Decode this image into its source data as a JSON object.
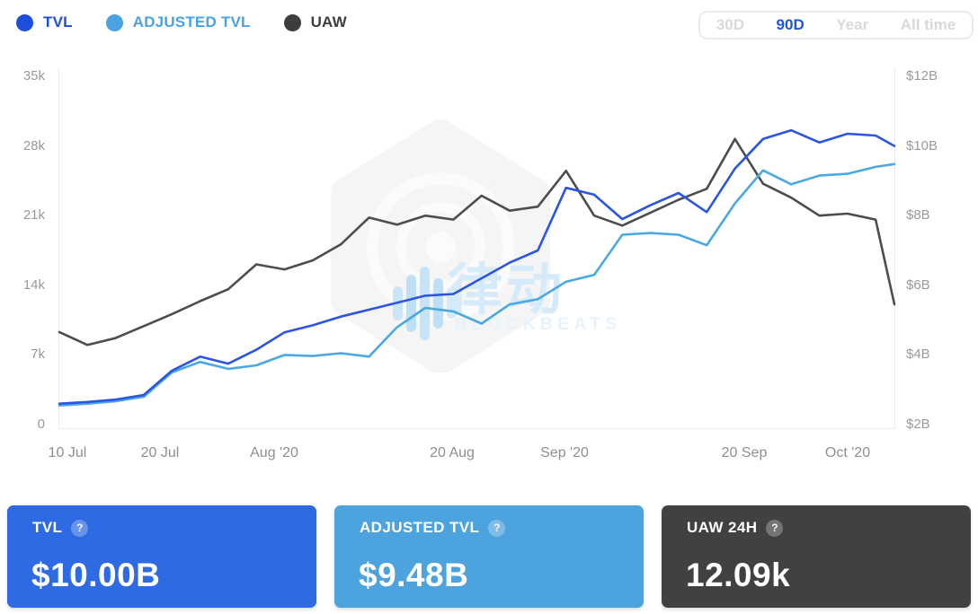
{
  "legend": {
    "items": [
      {
        "label": "TVL",
        "color": "#1d4fdd"
      },
      {
        "label": "ADJUSTED TVL",
        "color": "#4aa3e0"
      },
      {
        "label": "UAW",
        "color": "#3d3d3d"
      }
    ]
  },
  "range_selector": {
    "active_color": "#1d54e8",
    "options": [
      {
        "label": "30D",
        "active": false
      },
      {
        "label": "90D",
        "active": true
      },
      {
        "label": "Year",
        "active": false
      },
      {
        "label": "All time",
        "active": false
      }
    ]
  },
  "chart_data": {
    "type": "line",
    "grid": false,
    "legend_position": "top-left",
    "x": [
      "Jul 9",
      "Jul 12",
      "Jul 15",
      "Jul 18",
      "Jul 21",
      "Jul 24",
      "Jul 27",
      "Jul 30",
      "Aug 2",
      "Aug 5",
      "Aug 8",
      "Aug 11",
      "Aug 14",
      "Aug 17",
      "Aug 20",
      "Aug 23",
      "Aug 26",
      "Aug 29",
      "Sep 1",
      "Sep 4",
      "Sep 7",
      "Sep 10",
      "Sep 13",
      "Sep 16",
      "Sep 19",
      "Sep 22",
      "Sep 25",
      "Sep 28",
      "Oct 1",
      "Oct 4",
      "Oct 6"
    ],
    "days": [
      0,
      3,
      6,
      9,
      12,
      15,
      18,
      21,
      24,
      27,
      30,
      33,
      36,
      39,
      42,
      45,
      48,
      51,
      54,
      57,
      60,
      63,
      66,
      69,
      72,
      75,
      78,
      81,
      84,
      87,
      89
    ],
    "x_ticks": [
      {
        "label": "10 Jul",
        "day": 1
      },
      {
        "label": "20 Jul",
        "day": 11
      },
      {
        "label": "Aug '20",
        "day": 23
      },
      {
        "label": "20 Aug",
        "day": 42
      },
      {
        "label": "Sep '20",
        "day": 54
      },
      {
        "label": "20 Sep",
        "day": 73
      },
      {
        "label": "Oct '20",
        "day": 84
      }
    ],
    "left_axis": {
      "unit": "k UAW",
      "range": [
        0,
        35
      ],
      "ticks": [
        "35k",
        "28k",
        "21k",
        "14k",
        "7k",
        "0"
      ]
    },
    "right_axis": {
      "unit": "$B",
      "range": [
        2,
        12
      ],
      "ticks": [
        "$12B",
        "$10B",
        "$8B",
        "$6B",
        "$4B",
        "$2B"
      ]
    },
    "series": [
      {
        "name": "TVL",
        "axis": "right",
        "unit": "$B",
        "color": "#2b55e2",
        "values": [
          2.6,
          2.65,
          2.72,
          2.85,
          3.55,
          3.95,
          3.75,
          4.15,
          4.65,
          4.85,
          5.1,
          5.3,
          5.5,
          5.7,
          5.75,
          6.2,
          6.65,
          7.0,
          8.8,
          8.6,
          7.9,
          8.3,
          8.65,
          8.1,
          9.35,
          10.2,
          10.45,
          10.1,
          10.35,
          10.3,
          10.0
        ]
      },
      {
        "name": "ADJUSTED TVL",
        "axis": "right",
        "unit": "$B",
        "color": "#4aa9e2",
        "values": [
          2.55,
          2.6,
          2.67,
          2.8,
          3.5,
          3.8,
          3.6,
          3.7,
          4.0,
          3.97,
          4.05,
          3.95,
          4.8,
          5.35,
          5.25,
          4.9,
          5.45,
          5.6,
          6.1,
          6.3,
          7.45,
          7.5,
          7.45,
          7.15,
          8.35,
          9.3,
          8.9,
          9.15,
          9.2,
          9.4,
          9.48
        ]
      },
      {
        "name": "UAW",
        "axis": "left",
        "unit": "k users",
        "color": "#4d4d4d",
        "values": [
          9.3,
          8.0,
          8.7,
          9.9,
          11.1,
          12.4,
          13.6,
          16.1,
          15.6,
          16.5,
          18.1,
          20.8,
          20.1,
          21.0,
          20.6,
          23.0,
          21.5,
          21.9,
          25.5,
          21.0,
          20.0,
          21.3,
          22.6,
          23.7,
          28.7,
          24.2,
          22.8,
          21.0,
          21.2,
          20.6,
          12.09
        ]
      }
    ]
  },
  "watermark": {
    "cjk": "律动",
    "latin": "BLOCKBEATS"
  },
  "cards": [
    {
      "title": "TVL",
      "value": "$10.00B",
      "bg": "#2e6ae4",
      "help": "?"
    },
    {
      "title": "ADJUSTED TVL",
      "value": "$9.48B",
      "bg": "#4da3dd",
      "help": "?"
    },
    {
      "title": "UAW 24H",
      "value": "12.09k",
      "bg": "#414141",
      "help": "?"
    }
  ]
}
